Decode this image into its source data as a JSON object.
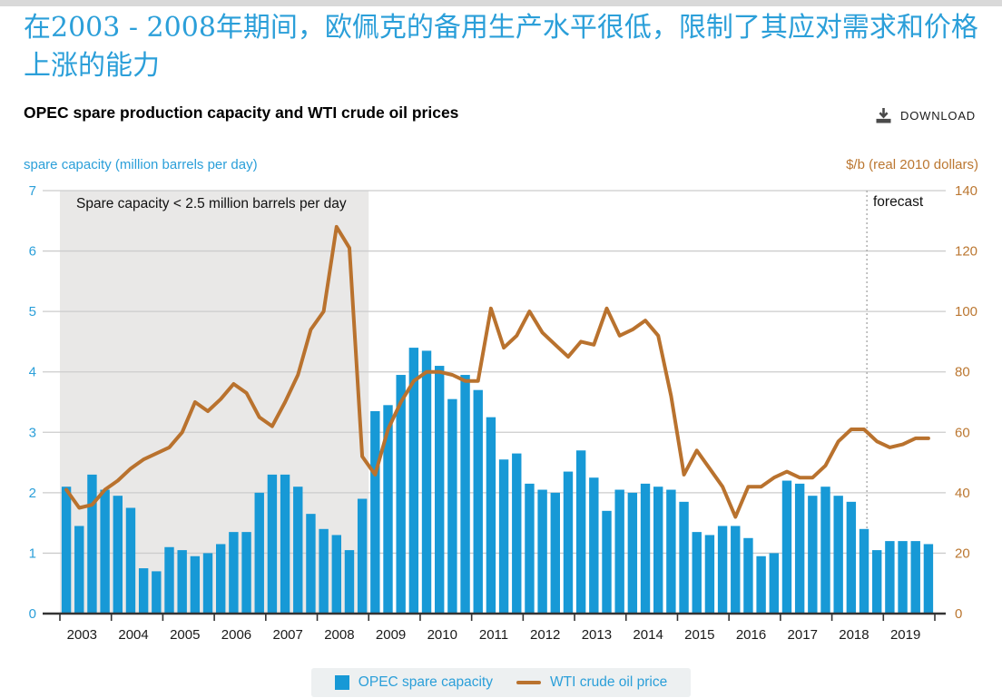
{
  "page": {
    "heading_zh": "在2003 - 2008年期间，欧佩克的备用生产水平很低，限制了其应对需求和价格上涨的能力",
    "chart_title": "OPEC spare production capacity and WTI crude oil prices",
    "download_label": "DOWNLOAD"
  },
  "colors": {
    "blue_text": "#2b9fd9",
    "bar_blue": "#1799d6",
    "line_orange": "#b9722e",
    "orange_text": "#bb7731",
    "grid": "#cccccc",
    "axis_dark": "#333333",
    "shade": "#e9e8e7",
    "forecast_line": "#aaaaaa",
    "legend_bg": "#edf0f1",
    "year_label": "#1a1a1a",
    "top_strip": "#d9d9d9",
    "download_icon": "#4a4a4a"
  },
  "chart_data": {
    "type": "bar",
    "x_start": "2003 Q1",
    "x_freq": "quarterly",
    "bars_per_year": 4,
    "x_years": [
      "2003",
      "2004",
      "2005",
      "2006",
      "2007",
      "2008",
      "2009",
      "2010",
      "2011",
      "2012",
      "2013",
      "2014",
      "2015",
      "2016",
      "2017",
      "2018",
      "2019"
    ],
    "left_axis": {
      "label": "spare capacity (million barrels per day)",
      "min": 0,
      "max": 7,
      "ticks": [
        "0",
        "1",
        "2",
        "3",
        "4",
        "5",
        "6",
        "7"
      ]
    },
    "right_axis": {
      "label": "$/b (real 2010 dollars)",
      "min": 0,
      "max": 140,
      "ticks": [
        "0",
        "20",
        "40",
        "60",
        "80",
        "100",
        "120",
        "140"
      ]
    },
    "annotation": "Spare capacity < 2.5 million barrels per day",
    "shaded_region": {
      "from": "2003 Q1",
      "to": "2008 Q4",
      "years_span": 6
    },
    "forecast_label": "forecast",
    "forecast_start": "2018 Q4",
    "grid": true,
    "legend_position": "bottom-center",
    "series": [
      {
        "name": "OPEC spare capacity",
        "type": "bar",
        "axis": "left",
        "unit": "million barrels per day",
        "color": "#1799d6",
        "values": [
          2.1,
          1.45,
          2.3,
          2.05,
          1.95,
          1.75,
          0.75,
          0.7,
          1.1,
          1.05,
          0.95,
          1.0,
          1.15,
          1.35,
          1.35,
          2.0,
          2.3,
          2.3,
          2.1,
          1.65,
          1.4,
          1.3,
          1.05,
          1.9,
          3.35,
          3.45,
          3.95,
          4.4,
          4.35,
          4.1,
          3.55,
          3.95,
          3.7,
          3.25,
          2.55,
          2.65,
          2.15,
          2.05,
          2.0,
          2.35,
          2.7,
          2.25,
          1.7,
          2.05,
          2.0,
          2.15,
          2.1,
          2.05,
          1.85,
          1.35,
          1.3,
          1.45,
          1.45,
          1.25,
          0.95,
          1.0,
          2.2,
          2.15,
          1.95,
          2.1,
          1.95,
          1.85,
          1.4,
          1.05,
          1.2,
          1.2,
          1.2,
          1.15
        ]
      },
      {
        "name": "WTI crude oil price",
        "type": "line",
        "axis": "right",
        "unit": "$/b (real 2010 dollars)",
        "color": "#b9722e",
        "values": [
          41,
          35,
          36,
          41,
          44,
          48,
          51,
          53,
          55,
          60,
          70,
          67,
          71,
          76,
          73,
          65,
          62,
          70,
          79,
          94,
          100,
          128,
          121,
          52,
          46,
          61,
          70,
          77,
          80,
          80,
          79,
          77,
          77,
          101,
          88,
          92,
          100,
          93,
          89,
          85,
          90,
          89,
          101,
          92,
          94,
          97,
          92,
          72,
          46,
          54,
          48,
          42,
          32,
          42,
          42,
          45,
          47,
          45,
          45,
          49,
          57,
          61,
          61,
          57,
          55,
          56,
          58,
          58
        ]
      }
    ]
  }
}
